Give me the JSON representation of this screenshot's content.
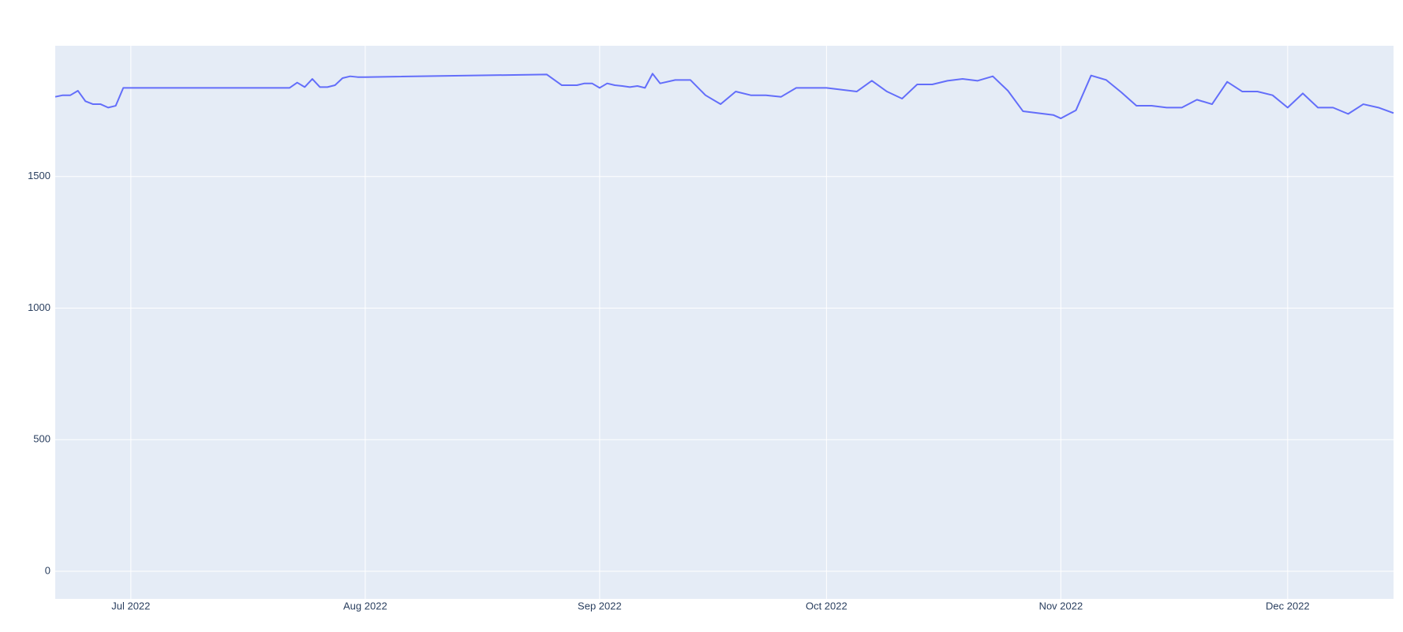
{
  "chart_data": {
    "type": "line",
    "x": [
      "2022-06-21",
      "2022-06-22",
      "2022-06-23",
      "2022-06-24",
      "2022-06-25",
      "2022-06-26",
      "2022-06-27",
      "2022-06-28",
      "2022-06-29",
      "2022-06-30",
      "2022-07-22",
      "2022-07-23",
      "2022-07-24",
      "2022-07-25",
      "2022-07-26",
      "2022-07-27",
      "2022-07-28",
      "2022-07-29",
      "2022-07-30",
      "2022-07-31",
      "2022-08-01",
      "2022-08-25",
      "2022-08-27",
      "2022-08-29",
      "2022-08-30",
      "2022-08-31",
      "2022-09-01",
      "2022-09-02",
      "2022-09-03",
      "2022-09-04",
      "2022-09-05",
      "2022-09-06",
      "2022-09-07",
      "2022-09-08",
      "2022-09-09",
      "2022-09-11",
      "2022-09-13",
      "2022-09-15",
      "2022-09-17",
      "2022-09-19",
      "2022-09-21",
      "2022-09-23",
      "2022-09-25",
      "2022-09-27",
      "2022-09-29",
      "2022-10-01",
      "2022-10-05",
      "2022-10-07",
      "2022-10-09",
      "2022-10-11",
      "2022-10-13",
      "2022-10-15",
      "2022-10-17",
      "2022-10-19",
      "2022-10-21",
      "2022-10-23",
      "2022-10-25",
      "2022-10-27",
      "2022-10-31",
      "2022-11-01",
      "2022-11-03",
      "2022-11-05",
      "2022-11-07",
      "2022-11-09",
      "2022-11-11",
      "2022-11-13",
      "2022-11-15",
      "2022-11-17",
      "2022-11-19",
      "2022-11-21",
      "2022-11-23",
      "2022-11-25",
      "2022-11-27",
      "2022-11-29",
      "2022-12-01",
      "2022-12-03",
      "2022-12-05",
      "2022-12-07",
      "2022-12-09",
      "2022-12-11",
      "2022-12-13",
      "2022-12-15"
    ],
    "series": [
      {
        "color": "#636efa",
        "values": [
          1803,
          1809,
          1809,
          1826,
          1786,
          1775,
          1775,
          1762,
          1769,
          1837,
          1837,
          1857,
          1840,
          1871,
          1840,
          1840,
          1847,
          1874,
          1881,
          1878,
          1878,
          1888,
          1847,
          1847,
          1854,
          1854,
          1837,
          1854,
          1847,
          1844,
          1840,
          1844,
          1837,
          1891,
          1854,
          1867,
          1867,
          1809,
          1775,
          1823,
          1809,
          1809,
          1803,
          1837,
          1837,
          1837,
          1823,
          1864,
          1823,
          1796,
          1850,
          1850,
          1864,
          1871,
          1864,
          1881,
          1826,
          1748,
          1734,
          1721,
          1752,
          1884,
          1867,
          1820,
          1769,
          1769,
          1762,
          1762,
          1792,
          1775,
          1860,
          1823,
          1823,
          1809,
          1762,
          1816,
          1762,
          1762,
          1738,
          1775,
          1762,
          1741
        ]
      }
    ],
    "xlim": [
      "2022-06-21",
      "2022-12-15"
    ],
    "xticks": [
      {
        "value": "2022-07-01",
        "label": "Jul 2022"
      },
      {
        "value": "2022-08-01",
        "label": "Aug 2022"
      },
      {
        "value": "2022-09-01",
        "label": "Sep 2022"
      },
      {
        "value": "2022-10-01",
        "label": "Oct 2022"
      },
      {
        "value": "2022-11-01",
        "label": "Nov 2022"
      },
      {
        "value": "2022-12-01",
        "label": "Dec 2022"
      }
    ],
    "ylim": [
      -105,
      1997
    ],
    "yticks": [
      0,
      500,
      1000,
      1500
    ],
    "grid": true
  }
}
